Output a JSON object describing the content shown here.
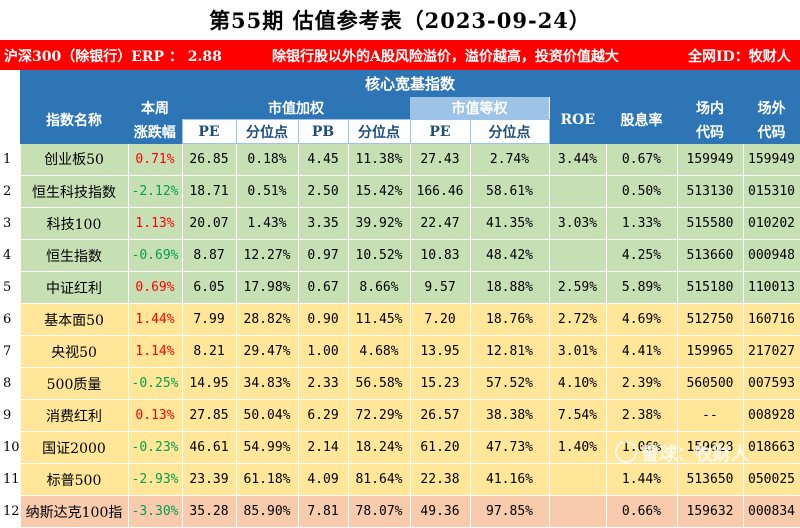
{
  "title": "第55期 估值参考表（2023-09-24）",
  "banner": {
    "erp": "沪深300（除银行）ERP ：  2.88",
    "note": "除银行股以外的A股风险溢价，溢价越高，投资价值越大",
    "account": "全网ID：牧财人"
  },
  "section_title": "核心宽基指数",
  "headers": {
    "name": "指数名称",
    "weekly_line1": "本周",
    "weekly_line2": "涨跌幅",
    "cap_weighted": "市值加权",
    "equal_weighted": "市值等权",
    "roe": "ROE",
    "dividend": "股息率",
    "onsite_line1": "场内",
    "onsite_line2": "代码",
    "offsite_line1": "场外",
    "offsite_line2": "代码",
    "pe": "PE",
    "percentile": "分位点",
    "pb": "PB"
  },
  "rows": [
    {
      "no": "1",
      "name": "创业板50",
      "chg": "0.71%",
      "pe": "26.85",
      "pe_pct": "0.18%",
      "pb": "4.45",
      "pb_pct": "11.38%",
      "epe": "27.43",
      "epe_pct": "2.74%",
      "roe": "3.44%",
      "div": "0.67%",
      "on": "159949",
      "off": "159949"
    },
    {
      "no": "2",
      "name": "恒生科技指数",
      "chg": "-2.12%",
      "pe": "18.71",
      "pe_pct": "0.51%",
      "pb": "2.50",
      "pb_pct": "15.42%",
      "epe": "166.46",
      "epe_pct": "58.61%",
      "roe": "",
      "div": "0.50%",
      "on": "513130",
      "off": "015310"
    },
    {
      "no": "3",
      "name": "科技100",
      "chg": "1.13%",
      "pe": "20.07",
      "pe_pct": "1.43%",
      "pb": "3.35",
      "pb_pct": "39.92%",
      "epe": "22.47",
      "epe_pct": "41.35%",
      "roe": "3.03%",
      "div": "1.33%",
      "on": "515580",
      "off": "010202"
    },
    {
      "no": "4",
      "name": "恒生指数",
      "chg": "-0.69%",
      "pe": "8.87",
      "pe_pct": "12.27%",
      "pb": "0.97",
      "pb_pct": "10.52%",
      "epe": "10.83",
      "epe_pct": "48.42%",
      "roe": "",
      "div": "4.25%",
      "on": "513660",
      "off": "000948"
    },
    {
      "no": "5",
      "name": "中证红利",
      "chg": "0.69%",
      "pe": "6.05",
      "pe_pct": "17.98%",
      "pb": "0.67",
      "pb_pct": "8.66%",
      "epe": "9.57",
      "epe_pct": "18.88%",
      "roe": "2.59%",
      "div": "5.89%",
      "on": "515180",
      "off": "110013"
    },
    {
      "no": "6",
      "name": "基本面50",
      "chg": "1.44%",
      "pe": "7.99",
      "pe_pct": "28.82%",
      "pb": "0.90",
      "pb_pct": "11.45%",
      "epe": "7.20",
      "epe_pct": "18.76%",
      "roe": "2.72%",
      "div": "4.69%",
      "on": "512750",
      "off": "160716"
    },
    {
      "no": "7",
      "name": "央视50",
      "chg": "1.14%",
      "pe": "8.21",
      "pe_pct": "29.47%",
      "pb": "1.00",
      "pb_pct": "4.68%",
      "epe": "13.95",
      "epe_pct": "12.81%",
      "roe": "3.01%",
      "div": "4.41%",
      "on": "159965",
      "off": "217027"
    },
    {
      "no": "8",
      "name": "500质量",
      "chg": "-0.25%",
      "pe": "14.95",
      "pe_pct": "34.83%",
      "pb": "2.33",
      "pb_pct": "56.58%",
      "epe": "15.23",
      "epe_pct": "57.52%",
      "roe": "4.10%",
      "div": "2.39%",
      "on": "560500",
      "off": "007593"
    },
    {
      "no": "9",
      "name": "消费红利",
      "chg": "0.13%",
      "pe": "27.85",
      "pe_pct": "50.04%",
      "pb": "6.29",
      "pb_pct": "72.29%",
      "epe": "26.57",
      "epe_pct": "38.38%",
      "roe": "7.54%",
      "div": "2.38%",
      "on": "--",
      "off": "008928"
    },
    {
      "no": "10",
      "name": "国证2000",
      "chg": "-0.23%",
      "pe": "46.61",
      "pe_pct": "54.99%",
      "pb": "2.14",
      "pb_pct": "18.24%",
      "epe": "61.20",
      "epe_pct": "47.73%",
      "roe": "1.40%",
      "div": "1.06%",
      "on": "159628",
      "off": "018663"
    },
    {
      "no": "11",
      "name": "标普500",
      "chg": "-2.93%",
      "pe": "23.39",
      "pe_pct": "61.18%",
      "pb": "4.09",
      "pb_pct": "81.64%",
      "epe": "22.38",
      "epe_pct": "41.16%",
      "roe": "",
      "div": "1.44%",
      "on": "513650",
      "off": "050025"
    },
    {
      "no": "12",
      "name": "纳斯达克100指",
      "chg": "-3.30%",
      "pe": "35.28",
      "pe_pct": "85.90%",
      "pb": "7.81",
      "pb_pct": "78.07%",
      "epe": "49.36",
      "epe_pct": "97.85%",
      "roe": "",
      "div": "0.66%",
      "on": "159632",
      "off": "000834"
    }
  ],
  "row_colors": [
    "#c6e0b4",
    "#c6e0b4",
    "#c6e0b4",
    "#c6e0b4",
    "#c6e0b4",
    "#ffe699",
    "#ffe699",
    "#ffe699",
    "#ffe699",
    "#ffe699",
    "#ffe699",
    "#f8cbad"
  ],
  "watermark": "雪球：牧财人"
}
